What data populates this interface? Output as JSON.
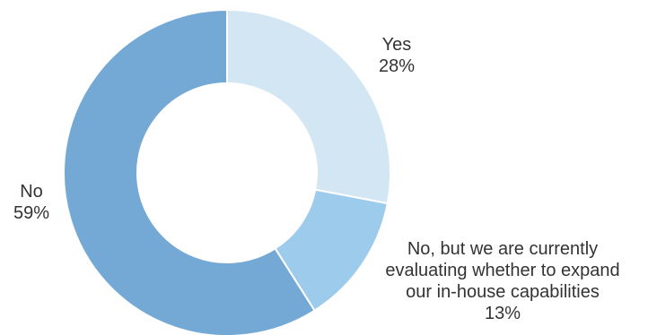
{
  "chart_data": {
    "type": "pie",
    "variant": "donut",
    "title": "",
    "slices": [
      {
        "label": "Yes",
        "value": 28,
        "value_label": "28%",
        "color": "#d2e6f3"
      },
      {
        "label": "No, but we are currently evaluating whether to expand our in-house capabilities",
        "label_lines": [
          "No, but we are currently",
          "evaluating whether to expand",
          "our in-house capabilities"
        ],
        "value": 13,
        "value_label": "13%",
        "color": "#9ccbeb"
      },
      {
        "label": "No",
        "value": 59,
        "value_label": "59%",
        "color": "#74a9d6"
      }
    ],
    "start_angle_deg": 0,
    "direction": "clockwise",
    "background": "#ffffff",
    "separator_color": "#ffffff"
  }
}
